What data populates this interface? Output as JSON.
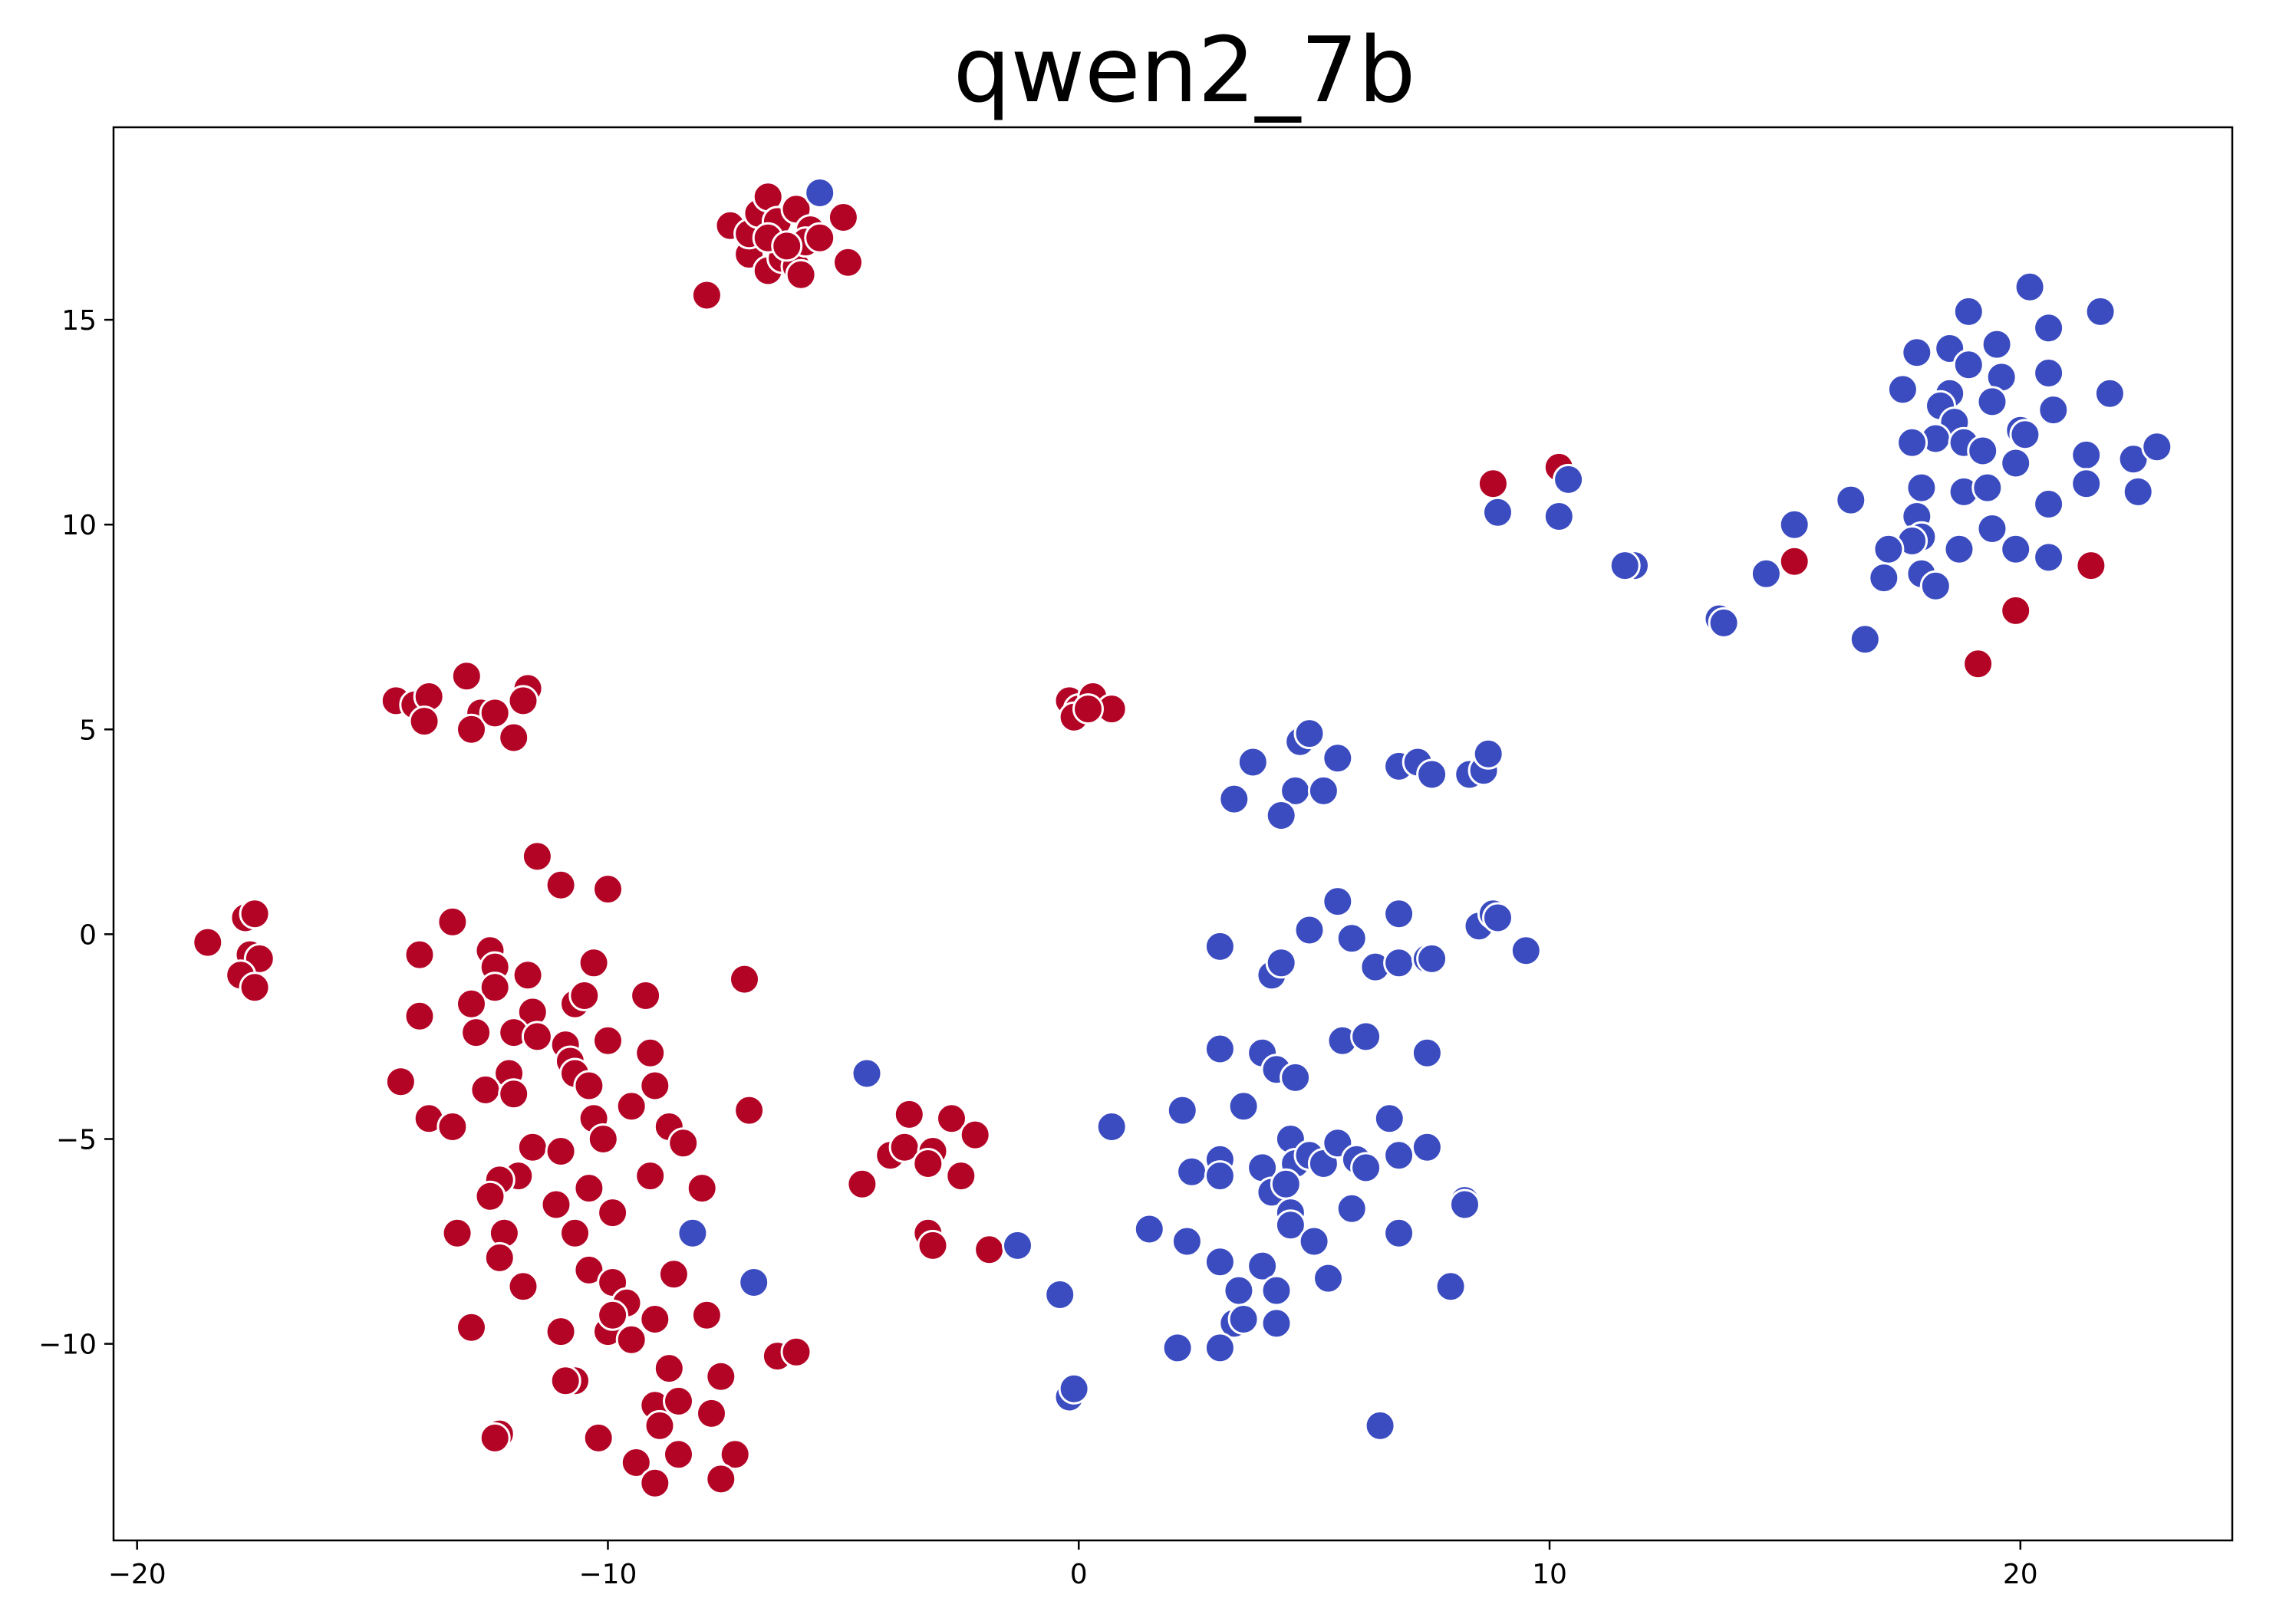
{
  "chart_data": {
    "type": "scatter",
    "title": "qwen2_7b",
    "xlabel": "",
    "ylabel": "",
    "xlim": [
      -20.5,
      24.5
    ],
    "ylim": [
      -14.8,
      19.7
    ],
    "xticks": [
      -20,
      -10,
      0,
      10,
      20
    ],
    "yticks": [
      -10,
      -5,
      0,
      5,
      10,
      15
    ],
    "grid": false,
    "legend": "none",
    "colors": {
      "red": "#b40426",
      "blue": "#3b4cc0",
      "edge": "#ffffff"
    },
    "series": [
      {
        "color": "red",
        "points": [
          [
            -7.9,
            15.6
          ],
          [
            -7.4,
            17.3
          ],
          [
            -7.0,
            16.6
          ],
          [
            -7.0,
            17.1
          ],
          [
            -6.8,
            17.6
          ],
          [
            -6.6,
            18.0
          ],
          [
            -6.6,
            16.2
          ],
          [
            -6.4,
            17.4
          ],
          [
            -6.3,
            16.5
          ],
          [
            -6.0,
            17.7
          ],
          [
            -6.0,
            16.3
          ],
          [
            -5.9,
            16.1
          ],
          [
            -5.7,
            17.2
          ],
          [
            -5.8,
            16.9
          ],
          [
            -5.5,
            17.0
          ],
          [
            -5.0,
            17.5
          ],
          [
            -4.9,
            16.4
          ],
          [
            -6.6,
            17.0
          ],
          [
            -6.2,
            16.8
          ],
          [
            -14.5,
            5.7
          ],
          [
            -14.1,
            5.6
          ],
          [
            -13.8,
            5.8
          ],
          [
            -13.9,
            5.2
          ],
          [
            -13.0,
            6.3
          ],
          [
            -12.7,
            5.4
          ],
          [
            -12.9,
            5.0
          ],
          [
            -12.4,
            5.4
          ],
          [
            -12.0,
            4.8
          ],
          [
            -11.7,
            6.0
          ],
          [
            -11.8,
            5.7
          ],
          [
            -0.2,
            5.7
          ],
          [
            0.0,
            5.5
          ],
          [
            0.3,
            5.8
          ],
          [
            0.7,
            5.5
          ],
          [
            -0.1,
            5.3
          ],
          [
            0.2,
            5.5
          ],
          [
            8.8,
            11.0
          ],
          [
            10.2,
            11.4
          ],
          [
            15.2,
            9.1
          ],
          [
            19.9,
            7.9
          ],
          [
            19.1,
            6.6
          ],
          [
            21.5,
            9.0
          ],
          [
            -18.5,
            -0.2
          ],
          [
            -17.7,
            0.4
          ],
          [
            -17.5,
            0.5
          ],
          [
            -17.6,
            -0.5
          ],
          [
            -17.4,
            -0.6
          ],
          [
            -17.8,
            -1.0
          ],
          [
            -17.5,
            -1.3
          ],
          [
            -11.5,
            1.9
          ],
          [
            -11.0,
            1.2
          ],
          [
            -10.0,
            1.1
          ],
          [
            -13.3,
            0.3
          ],
          [
            -12.5,
            -0.4
          ],
          [
            -12.4,
            -0.8
          ],
          [
            -12.4,
            -1.3
          ],
          [
            -11.7,
            -1.0
          ],
          [
            -10.3,
            -0.7
          ],
          [
            -14.0,
            -0.5
          ],
          [
            -14.0,
            -2.0
          ],
          [
            -12.9,
            -1.7
          ],
          [
            -11.6,
            -1.9
          ],
          [
            -10.7,
            -1.7
          ],
          [
            -10.5,
            -1.5
          ],
          [
            -9.2,
            -1.5
          ],
          [
            -7.1,
            -1.1
          ],
          [
            -12.8,
            -2.4
          ],
          [
            -12.0,
            -2.4
          ],
          [
            -11.5,
            -2.5
          ],
          [
            -10.9,
            -2.7
          ],
          [
            -10.0,
            -2.6
          ],
          [
            -9.1,
            -2.9
          ],
          [
            -10.8,
            -3.1
          ],
          [
            -10.7,
            -3.4
          ],
          [
            -10.4,
            -3.7
          ],
          [
            -12.1,
            -3.4
          ],
          [
            -12.6,
            -3.8
          ],
          [
            -12.0,
            -3.9
          ],
          [
            -14.4,
            -3.6
          ],
          [
            -9.0,
            -3.7
          ],
          [
            -13.8,
            -4.5
          ],
          [
            -13.3,
            -4.7
          ],
          [
            -10.3,
            -4.5
          ],
          [
            -9.5,
            -4.2
          ],
          [
            -8.7,
            -4.7
          ],
          [
            -7.0,
            -4.3
          ],
          [
            -11.6,
            -5.2
          ],
          [
            -11.0,
            -5.3
          ],
          [
            -10.1,
            -5.0
          ],
          [
            -8.4,
            -5.1
          ],
          [
            -9.1,
            -5.9
          ],
          [
            -11.9,
            -5.9
          ],
          [
            -12.3,
            -6.0
          ],
          [
            -12.5,
            -6.4
          ],
          [
            -11.1,
            -6.6
          ],
          [
            -10.4,
            -6.2
          ],
          [
            -9.9,
            -6.8
          ],
          [
            -8.0,
            -6.2
          ],
          [
            -13.2,
            -7.3
          ],
          [
            -12.2,
            -7.3
          ],
          [
            -10.7,
            -7.3
          ],
          [
            -12.3,
            -7.9
          ],
          [
            -10.4,
            -8.2
          ],
          [
            -8.6,
            -8.3
          ],
          [
            -11.8,
            -8.6
          ],
          [
            -9.9,
            -8.5
          ],
          [
            -9.6,
            -9.0
          ],
          [
            -9.0,
            -9.4
          ],
          [
            -7.9,
            -9.3
          ],
          [
            -12.9,
            -9.6
          ],
          [
            -11.0,
            -9.7
          ],
          [
            -10.0,
            -9.7
          ],
          [
            -9.5,
            -9.9
          ],
          [
            -9.9,
            -9.3
          ],
          [
            -8.7,
            -10.6
          ],
          [
            -7.6,
            -10.8
          ],
          [
            -10.7,
            -10.9
          ],
          [
            -10.9,
            -10.9
          ],
          [
            -9.0,
            -11.5
          ],
          [
            -8.5,
            -11.4
          ],
          [
            -7.8,
            -11.7
          ],
          [
            -8.9,
            -12.0
          ],
          [
            -12.3,
            -12.2
          ],
          [
            -12.4,
            -12.3
          ],
          [
            -10.2,
            -12.3
          ],
          [
            -8.5,
            -12.7
          ],
          [
            -9.4,
            -12.9
          ],
          [
            -7.3,
            -12.7
          ],
          [
            -9.0,
            -13.4
          ],
          [
            -7.6,
            -13.3
          ],
          [
            -6.4,
            -10.3
          ],
          [
            -6.0,
            -10.2
          ],
          [
            -4.6,
            -6.1
          ],
          [
            -4.0,
            -5.4
          ],
          [
            -3.7,
            -5.2
          ],
          [
            -3.6,
            -4.4
          ],
          [
            -3.1,
            -5.3
          ],
          [
            -3.2,
            -5.6
          ],
          [
            -2.7,
            -4.5
          ],
          [
            -2.5,
            -5.9
          ],
          [
            -2.2,
            -4.9
          ],
          [
            -3.2,
            -7.3
          ],
          [
            -3.1,
            -7.6
          ],
          [
            -1.9,
            -7.7
          ]
        ]
      },
      {
        "color": "blue",
        "points": [
          [
            -5.5,
            18.1
          ],
          [
            20.2,
            15.8
          ],
          [
            21.7,
            15.2
          ],
          [
            18.9,
            15.2
          ],
          [
            20.6,
            14.8
          ],
          [
            19.5,
            14.4
          ],
          [
            17.8,
            14.2
          ],
          [
            18.5,
            14.3
          ],
          [
            18.9,
            13.9
          ],
          [
            19.6,
            13.6
          ],
          [
            20.6,
            13.7
          ],
          [
            17.5,
            13.3
          ],
          [
            18.5,
            13.2
          ],
          [
            18.3,
            12.9
          ],
          [
            19.4,
            13.0
          ],
          [
            21.9,
            13.2
          ],
          [
            20.7,
            12.8
          ],
          [
            18.6,
            12.5
          ],
          [
            18.2,
            12.1
          ],
          [
            17.7,
            12.0
          ],
          [
            18.8,
            12.0
          ],
          [
            19.2,
            11.8
          ],
          [
            20.0,
            12.3
          ],
          [
            20.1,
            12.2
          ],
          [
            19.9,
            11.5
          ],
          [
            21.4,
            11.7
          ],
          [
            22.4,
            11.6
          ],
          [
            22.9,
            11.9
          ],
          [
            21.4,
            11.0
          ],
          [
            22.5,
            10.8
          ],
          [
            17.9,
            10.9
          ],
          [
            18.8,
            10.8
          ],
          [
            19.3,
            10.9
          ],
          [
            20.6,
            10.5
          ],
          [
            16.4,
            10.6
          ],
          [
            17.8,
            10.2
          ],
          [
            17.9,
            9.7
          ],
          [
            17.7,
            9.6
          ],
          [
            19.4,
            9.9
          ],
          [
            19.9,
            9.4
          ],
          [
            17.2,
            9.4
          ],
          [
            18.7,
            9.4
          ],
          [
            20.6,
            9.2
          ],
          [
            17.9,
            8.8
          ],
          [
            17.1,
            8.7
          ],
          [
            18.2,
            8.5
          ],
          [
            16.7,
            7.2
          ],
          [
            15.2,
            10.0
          ],
          [
            14.6,
            8.8
          ],
          [
            13.6,
            7.7
          ],
          [
            13.7,
            7.6
          ],
          [
            11.8,
            9.0
          ],
          [
            11.6,
            9.0
          ],
          [
            10.4,
            11.1
          ],
          [
            10.2,
            10.2
          ],
          [
            8.9,
            10.3
          ],
          [
            3.3,
            3.3
          ],
          [
            3.7,
            4.2
          ],
          [
            4.6,
            3.5
          ],
          [
            4.3,
            2.9
          ],
          [
            5.2,
            3.5
          ],
          [
            4.7,
            4.7
          ],
          [
            4.9,
            4.9
          ],
          [
            5.5,
            4.3
          ],
          [
            6.8,
            4.1
          ],
          [
            7.2,
            4.2
          ],
          [
            7.5,
            3.9
          ],
          [
            8.3,
            3.9
          ],
          [
            8.6,
            4.0
          ],
          [
            8.7,
            4.4
          ],
          [
            3.0,
            -0.3
          ],
          [
            4.1,
            -1.0
          ],
          [
            4.3,
            -0.7
          ],
          [
            4.9,
            0.1
          ],
          [
            5.5,
            0.8
          ],
          [
            5.8,
            -0.1
          ],
          [
            6.3,
            -0.8
          ],
          [
            6.8,
            0.5
          ],
          [
            6.8,
            -0.7
          ],
          [
            7.4,
            -0.6
          ],
          [
            7.5,
            -0.6
          ],
          [
            8.5,
            0.2
          ],
          [
            8.8,
            0.5
          ],
          [
            8.9,
            0.4
          ],
          [
            9.5,
            -0.4
          ],
          [
            5.6,
            -2.6
          ],
          [
            6.1,
            -2.5
          ],
          [
            7.4,
            -2.9
          ],
          [
            3.0,
            -2.8
          ],
          [
            3.9,
            -2.9
          ],
          [
            4.2,
            -3.3
          ],
          [
            4.6,
            -3.5
          ],
          [
            3.5,
            -4.2
          ],
          [
            2.2,
            -4.3
          ],
          [
            0.7,
            -4.7
          ],
          [
            -4.5,
            -3.4
          ],
          [
            4.5,
            -5.0
          ],
          [
            4.6,
            -5.6
          ],
          [
            4.9,
            -5.4
          ],
          [
            5.2,
            -5.6
          ],
          [
            5.5,
            -5.1
          ],
          [
            5.9,
            -5.5
          ],
          [
            6.1,
            -5.7
          ],
          [
            6.6,
            -4.5
          ],
          [
            6.8,
            -5.4
          ],
          [
            7.4,
            -5.2
          ],
          [
            8.2,
            -6.5
          ],
          [
            8.2,
            -6.6
          ],
          [
            2.4,
            -5.8
          ],
          [
            3.0,
            -5.5
          ],
          [
            3.0,
            -5.9
          ],
          [
            3.9,
            -5.7
          ],
          [
            4.1,
            -6.3
          ],
          [
            4.4,
            -6.1
          ],
          [
            4.5,
            -6.8
          ],
          [
            4.5,
            -7.1
          ],
          [
            5.0,
            -7.5
          ],
          [
            5.8,
            -6.7
          ],
          [
            6.8,
            -7.3
          ],
          [
            1.5,
            -7.2
          ],
          [
            2.3,
            -7.5
          ],
          [
            -1.3,
            -7.6
          ],
          [
            -8.2,
            -7.3
          ],
          [
            -6.9,
            -8.5
          ],
          [
            -0.4,
            -8.8
          ],
          [
            3.0,
            -8.0
          ],
          [
            3.9,
            -8.1
          ],
          [
            5.3,
            -8.4
          ],
          [
            3.4,
            -8.7
          ],
          [
            4.2,
            -8.7
          ],
          [
            7.9,
            -8.6
          ],
          [
            3.3,
            -9.5
          ],
          [
            3.5,
            -9.4
          ],
          [
            4.2,
            -9.5
          ],
          [
            2.1,
            -10.1
          ],
          [
            3.0,
            -10.1
          ],
          [
            -0.2,
            -11.3
          ],
          [
            -0.1,
            -11.1
          ],
          [
            6.4,
            -12.0
          ]
        ]
      }
    ]
  }
}
